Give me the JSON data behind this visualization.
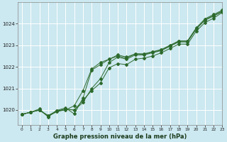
{
  "xlabel": "Graphe pression niveau de la mer (hPa)",
  "xlim": [
    -0.5,
    23
  ],
  "ylim": [
    1019.3,
    1025.0
  ],
  "yticks": [
    1020,
    1021,
    1022,
    1023,
    1024
  ],
  "xticks": [
    0,
    1,
    2,
    3,
    4,
    5,
    6,
    7,
    8,
    9,
    10,
    11,
    12,
    13,
    14,
    15,
    16,
    17,
    18,
    19,
    20,
    21,
    22,
    23
  ],
  "bg_color": "#cce8f0",
  "grid_color": "#ffffff",
  "line_color": "#2d6a2d",
  "line1": [
    1019.8,
    1019.9,
    1020.0,
    1019.75,
    1019.95,
    1020.05,
    1020.0,
    1020.35,
    1021.0,
    1021.45,
    1022.2,
    1022.45,
    1022.35,
    1022.55,
    1022.55,
    1022.65,
    1022.75,
    1022.95,
    1023.15,
    1023.15,
    1023.75,
    1024.15,
    1024.35,
    1024.55
  ],
  "line2": [
    1019.8,
    1019.9,
    1020.0,
    1019.72,
    1019.92,
    1020.02,
    1020.0,
    1020.45,
    1020.9,
    1021.25,
    1021.95,
    1022.15,
    1022.1,
    1022.35,
    1022.4,
    1022.5,
    1022.65,
    1022.85,
    1023.05,
    1023.05,
    1023.65,
    1024.05,
    1024.25,
    1024.52
  ],
  "line3": [
    1019.8,
    1019.9,
    1020.05,
    1019.68,
    1019.98,
    1020.1,
    1019.82,
    1020.55,
    1021.85,
    1022.1,
    1022.35,
    1022.55,
    1022.45,
    1022.6,
    1022.6,
    1022.7,
    1022.8,
    1023.0,
    1023.2,
    1023.2,
    1023.8,
    1024.22,
    1024.42,
    1024.62
  ],
  "line4": [
    1019.8,
    1019.9,
    1020.0,
    1019.72,
    1019.98,
    1020.0,
    1020.2,
    1020.9,
    1021.9,
    1022.2,
    1022.35,
    1022.5,
    1022.4,
    1022.6,
    1022.58,
    1022.68,
    1022.78,
    1022.98,
    1023.18,
    1023.18,
    1023.78,
    1024.18,
    1024.38,
    1024.58
  ]
}
